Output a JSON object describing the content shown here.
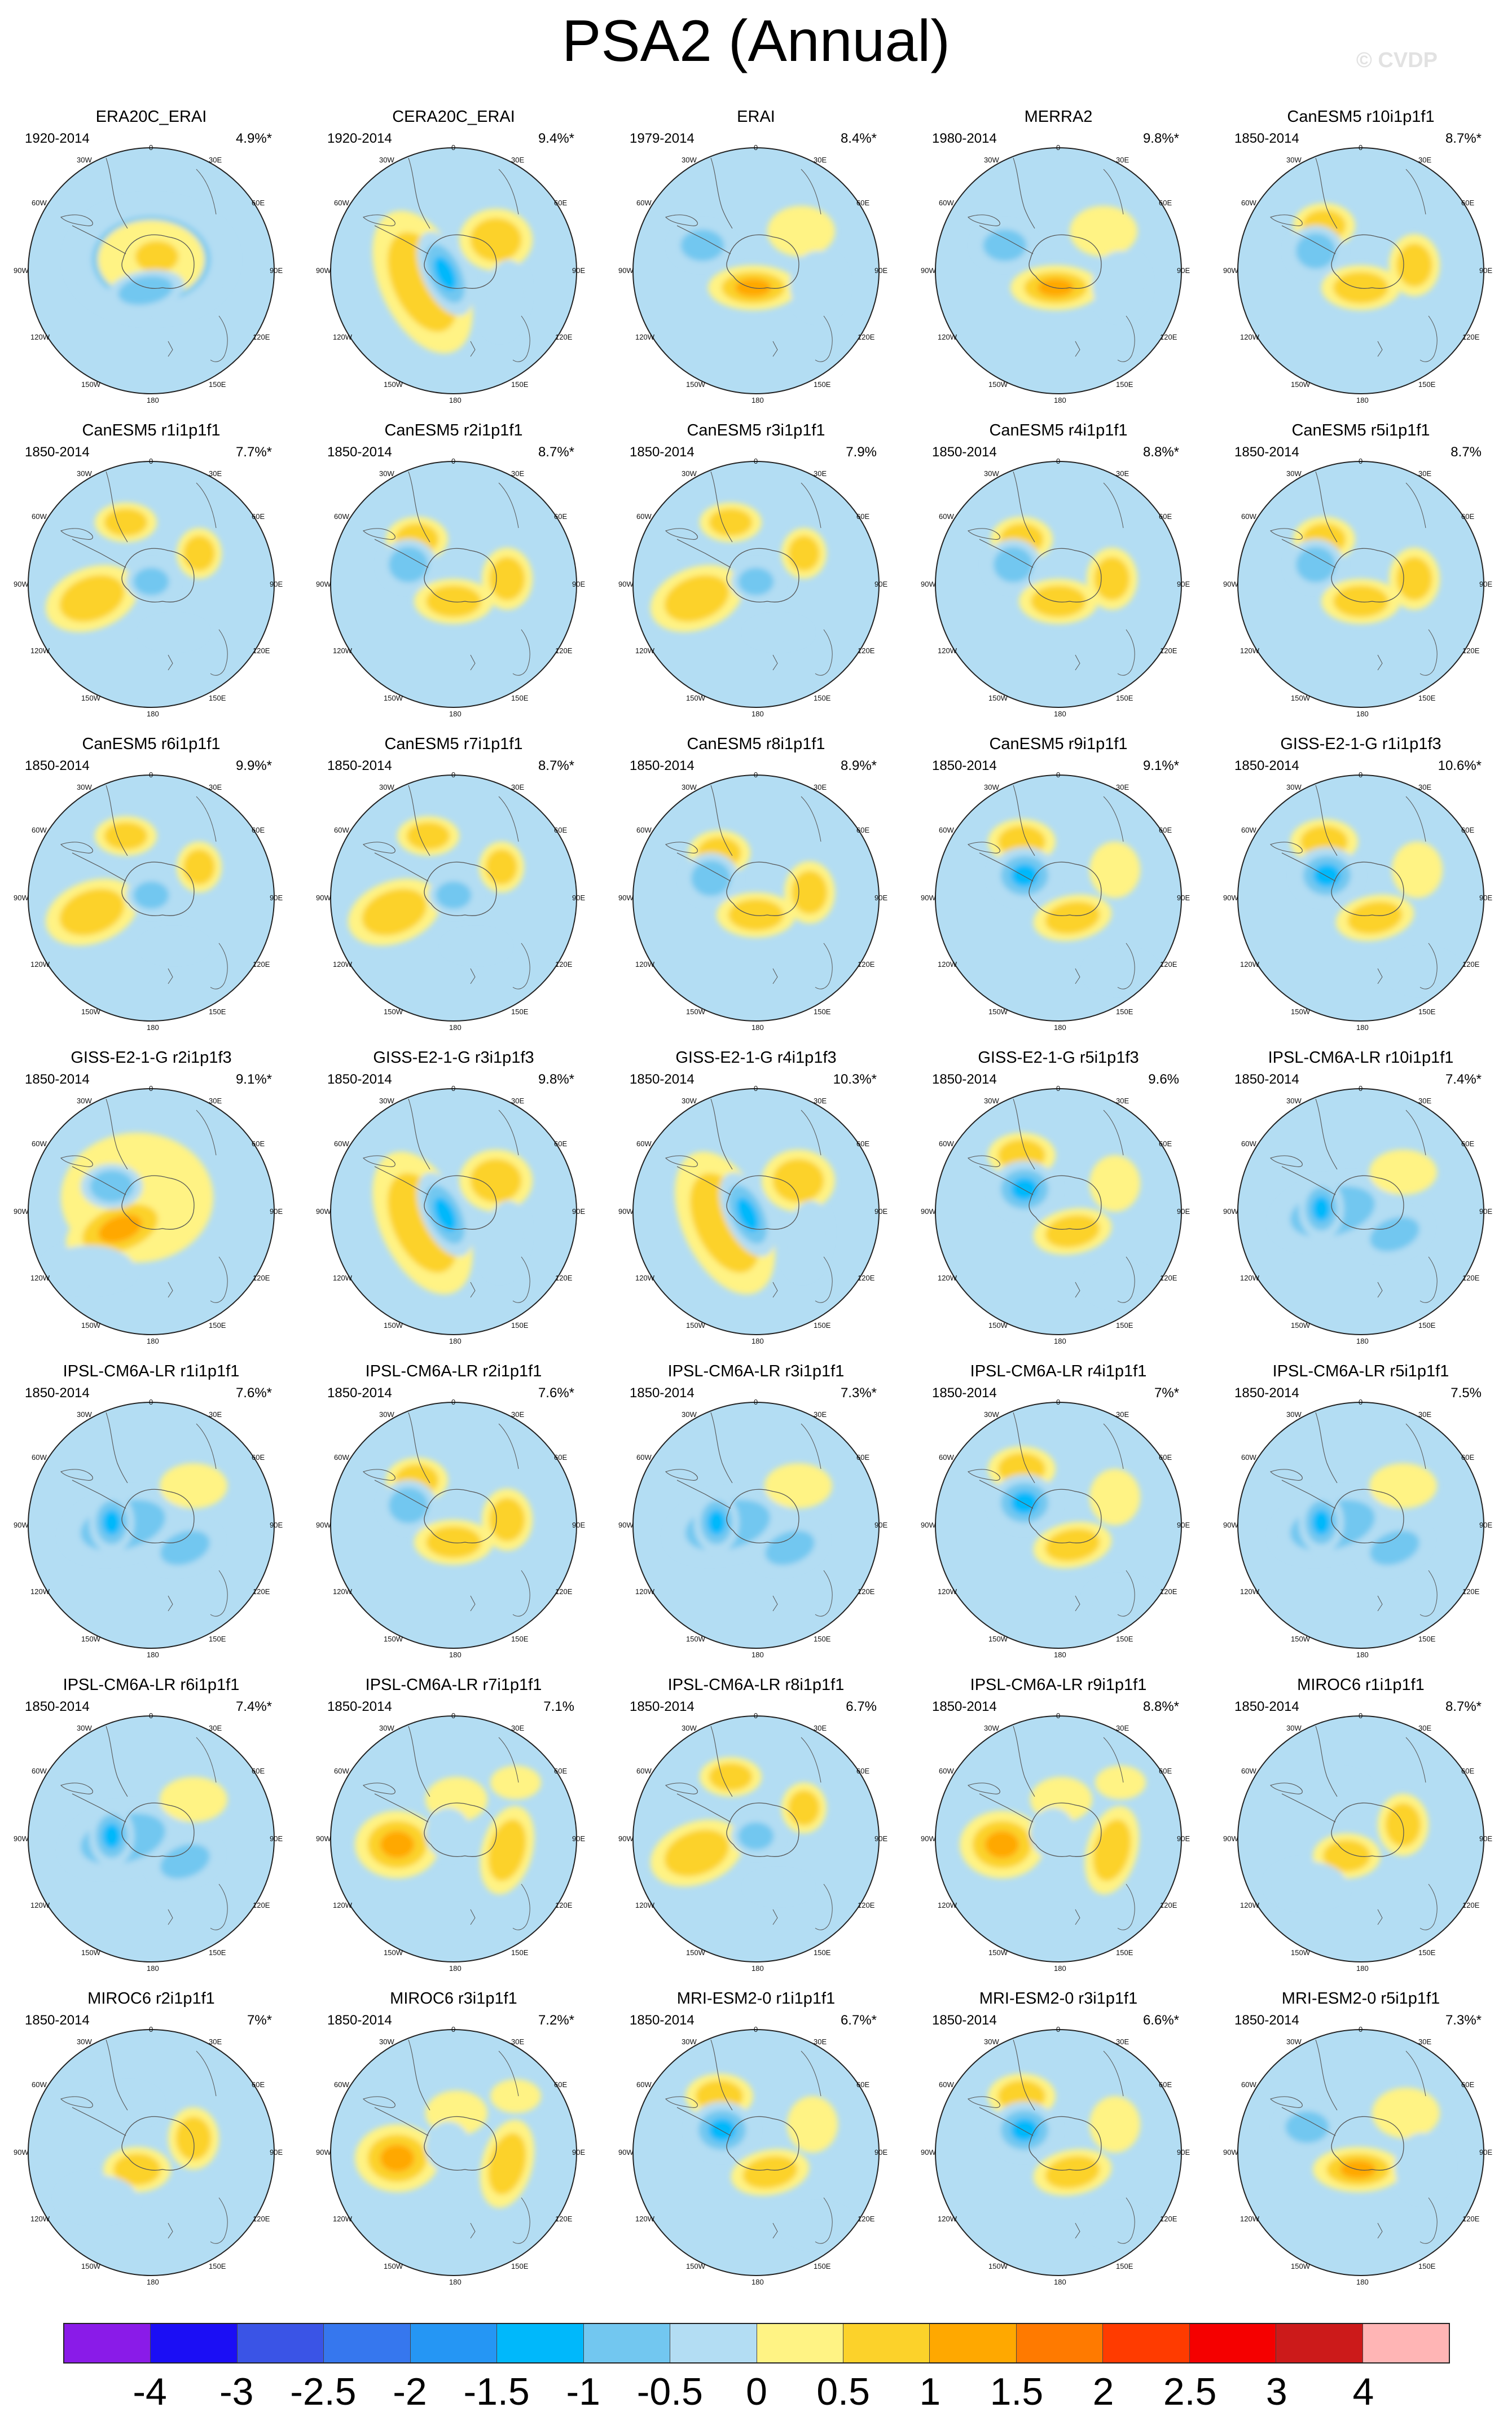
{
  "title": "PSA2 (Annual)",
  "watermark": "© CVDP",
  "map_labels": {
    "lon_0": "0",
    "lon_30e": "30E",
    "lon_60e": "60E",
    "lon_90e": "90E",
    "lon_120e": "120E",
    "lon_150e": "150E",
    "lon_180": "180",
    "lon_150w": "150W",
    "lon_120w": "120W",
    "lon_90w": "90W",
    "lon_60w": "60W",
    "lon_30w": "30W"
  },
  "colors": {
    "land": "#d9d9c8",
    "coast": "#555555",
    "frame": "#222222"
  },
  "colorbar": {
    "colors": [
      "#8a1be8",
      "#1b0ef5",
      "#3a54e6",
      "#3677ee",
      "#2596f4",
      "#00b8fb",
      "#72c7f0",
      "#b3ddf3",
      "#fff384",
      "#fcd22a",
      "#ffa800",
      "#ff7a00",
      "#ff3b00",
      "#f50000",
      "#cc1a1a",
      "#ffb5b5"
    ],
    "ticks": [
      "-4",
      "-3",
      "-2.5",
      "-2",
      "-1.5",
      "-1",
      "-0.5",
      "0",
      "0.5",
      "1",
      "1.5",
      "2",
      "2.5",
      "3",
      "4"
    ]
  },
  "panels": [
    {
      "title": "ERA20C_ERAI",
      "years": "1920-2014",
      "pct": "4.9%*",
      "pattern": 0
    },
    {
      "title": "CERA20C_ERAI",
      "years": "1920-2014",
      "pct": "9.4%*",
      "pattern": 1
    },
    {
      "title": "ERAI",
      "years": "1979-2014",
      "pct": "8.4%*",
      "pattern": 2
    },
    {
      "title": "MERRA2",
      "years": "1980-2014",
      "pct": "9.8%*",
      "pattern": 2
    },
    {
      "title": "CanESM5 r10i1p1f1",
      "years": "1850-2014",
      "pct": "8.7%*",
      "pattern": 3
    },
    {
      "title": "CanESM5 r1i1p1f1",
      "years": "1850-2014",
      "pct": "7.7%*",
      "pattern": 4
    },
    {
      "title": "CanESM5 r2i1p1f1",
      "years": "1850-2014",
      "pct": "8.7%*",
      "pattern": 3
    },
    {
      "title": "CanESM5 r3i1p1f1",
      "years": "1850-2014",
      "pct": "7.9%",
      "pattern": 4
    },
    {
      "title": "CanESM5 r4i1p1f1",
      "years": "1850-2014",
      "pct": "8.8%*",
      "pattern": 3
    },
    {
      "title": "CanESM5 r5i1p1f1",
      "years": "1850-2014",
      "pct": "8.7%",
      "pattern": 3
    },
    {
      "title": "CanESM5 r6i1p1f1",
      "years": "1850-2014",
      "pct": "9.9%*",
      "pattern": 4
    },
    {
      "title": "CanESM5 r7i1p1f1",
      "years": "1850-2014",
      "pct": "8.7%*",
      "pattern": 4
    },
    {
      "title": "CanESM5 r8i1p1f1",
      "years": "1850-2014",
      "pct": "8.9%*",
      "pattern": 3
    },
    {
      "title": "CanESM5 r9i1p1f1",
      "years": "1850-2014",
      "pct": "9.1%*",
      "pattern": 5
    },
    {
      "title": "GISS-E2-1-G r1i1p1f3",
      "years": "1850-2014",
      "pct": "10.6%*",
      "pattern": 5
    },
    {
      "title": "GISS-E2-1-G r2i1p1f3",
      "years": "1850-2014",
      "pct": "9.1%*",
      "pattern": 6
    },
    {
      "title": "GISS-E2-1-G r3i1p1f3",
      "years": "1850-2014",
      "pct": "9.8%*",
      "pattern": 1
    },
    {
      "title": "GISS-E2-1-G r4i1p1f3",
      "years": "1850-2014",
      "pct": "10.3%*",
      "pattern": 1
    },
    {
      "title": "GISS-E2-1-G r5i1p1f3",
      "years": "1850-2014",
      "pct": "9.6%",
      "pattern": 5
    },
    {
      "title": "IPSL-CM6A-LR r10i1p1f1",
      "years": "1850-2014",
      "pct": "7.4%*",
      "pattern": 7
    },
    {
      "title": "IPSL-CM6A-LR r1i1p1f1",
      "years": "1850-2014",
      "pct": "7.6%*",
      "pattern": 7
    },
    {
      "title": "IPSL-CM6A-LR r2i1p1f1",
      "years": "1850-2014",
      "pct": "7.6%*",
      "pattern": 3
    },
    {
      "title": "IPSL-CM6A-LR r3i1p1f1",
      "years": "1850-2014",
      "pct": "7.3%*",
      "pattern": 7
    },
    {
      "title": "IPSL-CM6A-LR r4i1p1f1",
      "years": "1850-2014",
      "pct": "7%*",
      "pattern": 5
    },
    {
      "title": "IPSL-CM6A-LR r5i1p1f1",
      "years": "1850-2014",
      "pct": "7.5%",
      "pattern": 7
    },
    {
      "title": "IPSL-CM6A-LR r6i1p1f1",
      "years": "1850-2014",
      "pct": "7.4%*",
      "pattern": 7
    },
    {
      "title": "IPSL-CM6A-LR r7i1p1f1",
      "years": "1850-2014",
      "pct": "7.1%",
      "pattern": 8
    },
    {
      "title": "IPSL-CM6A-LR r8i1p1f1",
      "years": "1850-2014",
      "pct": "6.7%",
      "pattern": 4
    },
    {
      "title": "IPSL-CM6A-LR r9i1p1f1",
      "years": "1850-2014",
      "pct": "8.8%*",
      "pattern": 8
    },
    {
      "title": "MIROC6 r1i1p1f1",
      "years": "1850-2014",
      "pct": "8.7%*",
      "pattern": 9
    },
    {
      "title": "MIROC6 r2i1p1f1",
      "years": "1850-2014",
      "pct": "7%*",
      "pattern": 9
    },
    {
      "title": "MIROC6 r3i1p1f1",
      "years": "1850-2014",
      "pct": "7.2%*",
      "pattern": 8
    },
    {
      "title": "MRI-ESM2-0 r1i1p1f1",
      "years": "1850-2014",
      "pct": "6.7%*",
      "pattern": 5
    },
    {
      "title": "MRI-ESM2-0 r3i1p1f1",
      "years": "1850-2014",
      "pct": "6.6%*",
      "pattern": 5
    },
    {
      "title": "MRI-ESM2-0 r5i1p1f1",
      "years": "1850-2014",
      "pct": "7.3%*",
      "pattern": 2
    }
  ]
}
